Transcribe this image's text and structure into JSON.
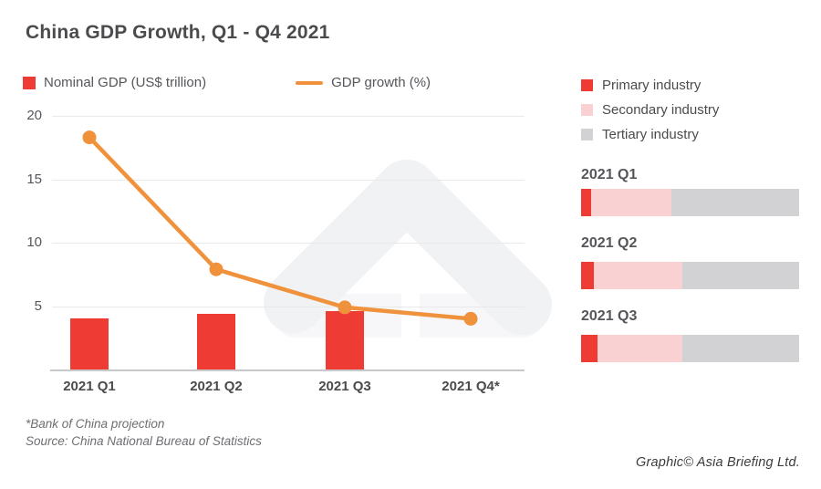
{
  "title": "China GDP Growth, Q1 - Q4 2021",
  "colors": {
    "red": "#ee3b33",
    "orange": "#f0913c",
    "pink": "#f9d1d3",
    "gray": "#d2d2d4",
    "watermark_chevron": "#f1f2f4",
    "watermark_band": "#f7f7f9"
  },
  "combo_legend": [
    {
      "label": "Nominal GDP (US$ trillion)",
      "swatch": "red-square"
    },
    {
      "label": "GDP growth (%)",
      "swatch": "orange-line"
    }
  ],
  "footnotes": {
    "line1": "*Bank of China projection",
    "line2": "Source: China National Bureau of Statistics"
  },
  "credit": "Graphic© Asia Briefing Ltd.",
  "chart_data": [
    {
      "type": "bar",
      "subtype": "bar+line combo",
      "categories": [
        "2021 Q1",
        "2021 Q2",
        "2021 Q3",
        "2021 Q4*"
      ],
      "series": [
        {
          "name": "Nominal GDP (US$ trillion)",
          "type": "bar",
          "color": "#ee3b33",
          "values": [
            4.0,
            4.4,
            4.6,
            null
          ]
        },
        {
          "name": "GDP growth (%)",
          "type": "line",
          "color": "#f0913c",
          "values": [
            18.3,
            7.9,
            4.9,
            4.0
          ]
        }
      ],
      "title": "China GDP Growth, Q1 - Q4 2021",
      "xlabel": "",
      "ylabel": "",
      "ylim": [
        0,
        20
      ],
      "yticks": [
        5,
        10,
        15,
        20
      ],
      "grid": true,
      "legend_position": "top-left",
      "note": "2021 Q4 is a Bank of China projection (line point only, no bar)"
    },
    {
      "type": "bar",
      "subtype": "stacked horizontal, share of GDP (%)",
      "orientation": "horizontal",
      "stacked": true,
      "categories": [
        "2021 Q1",
        "2021 Q2",
        "2021 Q3"
      ],
      "series": [
        {
          "name": "Primary industry",
          "color": "#ee3b33",
          "values": [
            4.6,
            6.0,
            7.4
          ]
        },
        {
          "name": "Secondary industry",
          "color": "#f9d1d3",
          "values": [
            36.8,
            40.4,
            39.2
          ]
        },
        {
          "name": "Tertiary industry",
          "color": "#d2d2d4",
          "values": [
            58.6,
            53.6,
            53.4
          ]
        }
      ],
      "xlim": [
        0,
        100
      ],
      "legend_position": "top"
    }
  ]
}
